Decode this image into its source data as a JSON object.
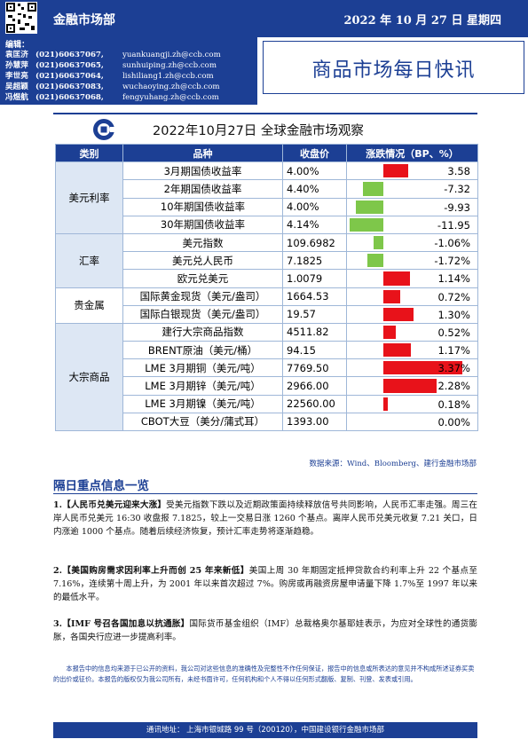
{
  "header": {
    "dept": "金融市场部",
    "date": "2022 年 10 月 27 日  星期四",
    "title": "商品市场每日快讯"
  },
  "editors": {
    "label": "编辑：",
    "list": [
      {
        "name": "袁匡济",
        "phone": "(021)60637067,",
        "email": "yuankuangji.zh@ccb.com"
      },
      {
        "name": "孙慧萍",
        "phone": "(021)60637065,",
        "email": "sunhuiping.zh@ccb.com"
      },
      {
        "name": "李世亮",
        "phone": "(021)60637064,",
        "email": "lishiliang1.zh@ccb.com"
      },
      {
        "name": "吴超颖",
        "phone": "(021)60637083,",
        "email": "wuchaoying.zh@ccb.com"
      },
      {
        "name": "冯煜航",
        "phone": "(021)60637068,",
        "email": "fengyuhang.zh@ccb.com"
      }
    ]
  },
  "section_title": "2022年10月27日 全球金融市场观察",
  "table": {
    "headers": [
      "类别",
      "品种",
      "收盘价",
      "涨跌情况（BP、%）"
    ],
    "rows": [
      {
        "category": "美元利率",
        "span": 4,
        "name": "3月期国债收益率",
        "close": "4.00%",
        "change": "3.58",
        "value": 3.58
      },
      {
        "name": "2年期国债收益率",
        "close": "4.40%",
        "change": "-7.32",
        "value": -7.32
      },
      {
        "name": "10年期国债收益率",
        "close": "4.00%",
        "change": "-9.93",
        "value": -9.93
      },
      {
        "name": "30年期国债收益率",
        "close": "4.14%",
        "change": "-11.95",
        "value": -11.95
      },
      {
        "category": "汇率",
        "span": 3,
        "name": "美元指数",
        "close": "109.6982",
        "change": "-1.06%",
        "value": -1.06
      },
      {
        "name": "美元兑人民币",
        "close": "7.1825",
        "change": "-1.72%",
        "value": -1.72
      },
      {
        "name": "欧元兑美元",
        "close": "1.0079",
        "change": "1.14%",
        "value": 1.14
      },
      {
        "category": "贵金属",
        "span": 2,
        "name": "国际黄金现货（美元/盎司）",
        "close": "1664.53",
        "change": "0.72%",
        "value": 0.72
      },
      {
        "name": "国际白银现货（美元/盎司）",
        "close": "19.57",
        "change": "1.30%",
        "value": 1.3
      },
      {
        "category": "大宗商品",
        "span": 6,
        "name": "建行大宗商品指数",
        "close": "4511.82",
        "change": "0.52%",
        "value": 0.52
      },
      {
        "name": "BRENT原油（美元/桶）",
        "close": "94.15",
        "change": "1.17%",
        "value": 1.17
      },
      {
        "name": "LME 3月期铜（美元/吨）",
        "close": "7769.50",
        "change": "3.37%",
        "value": 3.37
      },
      {
        "name": "LME 3月期锌（美元/吨）",
        "close": "2966.00",
        "change": "2.28%",
        "value": 2.28
      },
      {
        "name": "LME 3月期镍（美元/吨）",
        "close": "22560.00",
        "change": "0.18%",
        "value": 0.18
      },
      {
        "name": "CBOT大豆（美分/蒲式耳）",
        "close": "1393.00",
        "change": "0.00%",
        "value": 0.0
      }
    ]
  },
  "source": "数据来源：Wind、Bloomberg、建行金融市场部",
  "news": {
    "heading": "隔日重点信息一览",
    "items": [
      {
        "num": "1.",
        "title": "【人民币兑美元迎来大涨】",
        "body": "受美元指数下跌以及近期政策面持续释放信号共同影响，人民币汇率走强。周三在岸人民币兑美元 16:30 收盘报 7.1825，较上一交易日涨 1260 个基点。离岸人民币兑美元收复 7.21 关口，日内涨逾 1000 个基点。随着后续经济恢复，预计汇率走势将逐渐趋稳。"
      },
      {
        "num": "2.",
        "title": "【美国购房需求因利率上升而创 25 年来新低】",
        "body": "美国上周 30 年期固定抵押贷款合约利率上升 22 个基点至 7.16%，连续第十周上升，为 2001 年以来首次超过 7%。购房或再融资房屋申请量下降 1.7%至 1997 年以来的最低水平。"
      },
      {
        "num": "3.",
        "title": "【IMF 号召各国加息以抗通胀】",
        "body": "国际货币基金组织（IMF）总裁格奥尔基耶娃表示，为应对全球性的通货膨胀，各国央行应进一步提高利率。"
      }
    ]
  },
  "disclaimer": "本报告中的信息均来源于已公开的资料，我公司对这些信息的准确性及完整性不作任何保证，报告中的信息或所表达的意见并不构成所述证券买卖的出价或征价。本报告的版权仅为我公司所有，未经书面许可，任何机构和个人不得以任何形式翻版、复制、刊登、发表或引用。",
  "footer": "通讯地址：  上海市银城路 99 号（200120），中国建设银行金融市场部",
  "colors": {
    "brand": "#1c3f94",
    "up": "#e8121a",
    "down": "#7ec74a"
  }
}
